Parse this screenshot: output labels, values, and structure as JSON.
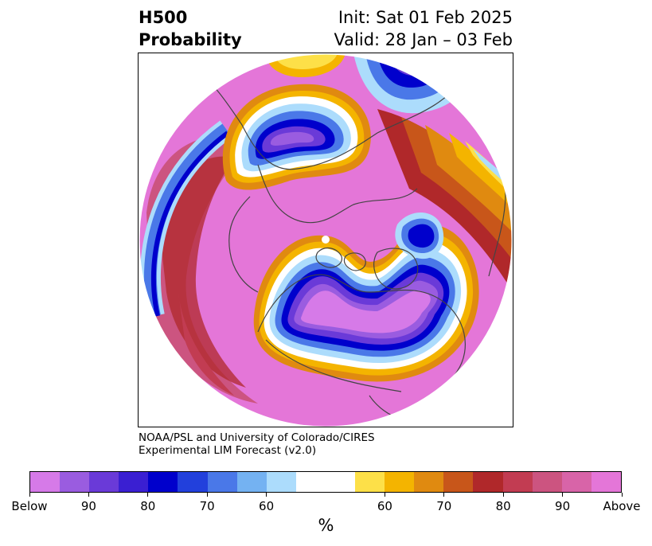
{
  "title": {
    "left_line1": "H500",
    "left_line2": "Probability",
    "right_line1": "Init: Sat 01 Feb 2025",
    "right_line2": "Valid: 28 Jan – 03 Feb"
  },
  "credit": {
    "line1": "NOAA/PSL and University of Colorado/CIRES",
    "line2": "Experimental LIM Forecast (v2.0)"
  },
  "colorbar": {
    "unit": "%",
    "segments": [
      "#d67ae8",
      "#9a5ce0",
      "#6a3ad8",
      "#3a1fd2",
      "#0000cc",
      "#2240dc",
      "#4a78e8",
      "#74b2f2",
      "#acdcfc",
      "#ffffff",
      "#ffffff",
      "#fde048",
      "#f4b400",
      "#e08a10",
      "#c8561a",
      "#b0282a",
      "#c23c52",
      "#cc5480",
      "#d864a8",
      "#e476d8"
    ],
    "tick_labels": [
      "Below",
      "90",
      "80",
      "70",
      "60",
      "60",
      "70",
      "80",
      "90",
      "Above"
    ]
  },
  "map": {
    "projection": "north polar stereographic",
    "colors": {
      "above_high": "#e476d8",
      "above_mid": "#cc5480",
      "above_red": "#b0282a",
      "orange": "#e08a10",
      "gold": "#f4b400",
      "yellow": "#fde048",
      "light_blue": "#acdcfc",
      "mid_blue": "#4a78e8",
      "blue": "#0000cc",
      "purple": "#6a3ad8",
      "below_high": "#d67ae8",
      "land_outline": "#444444"
    }
  }
}
